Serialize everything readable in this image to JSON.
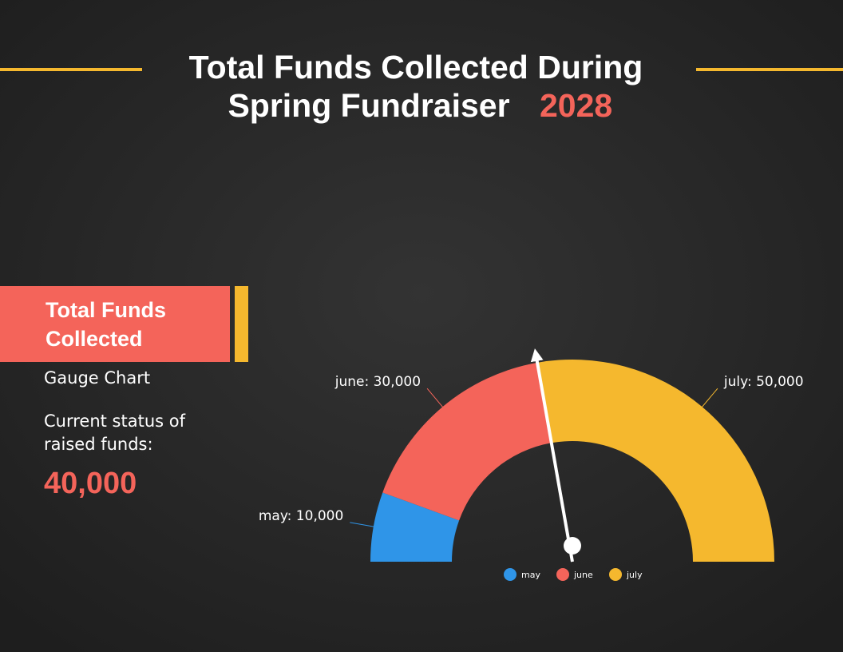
{
  "header": {
    "title_lines": [
      "Total Funds Collected During",
      "Spring Fundraiser"
    ],
    "year": "2028"
  },
  "panel": {
    "title_lines": [
      "Total Funds",
      "Collected"
    ],
    "subtitle": "Gauge Chart",
    "description_lines": [
      "Current status of",
      "raised funds:"
    ]
  },
  "chart_data": {
    "type": "gauge",
    "categories": [
      "may",
      "june",
      "july"
    ],
    "values": [
      10000,
      30000,
      50000
    ],
    "value_labels": [
      "may: 10,000",
      "june: 30,000",
      "july: 50,000"
    ],
    "colors": [
      "#2f95e8",
      "#f4645a",
      "#f5b82e"
    ],
    "needle": {
      "value": 40000,
      "label": "40,000"
    },
    "legend": "bottom"
  }
}
